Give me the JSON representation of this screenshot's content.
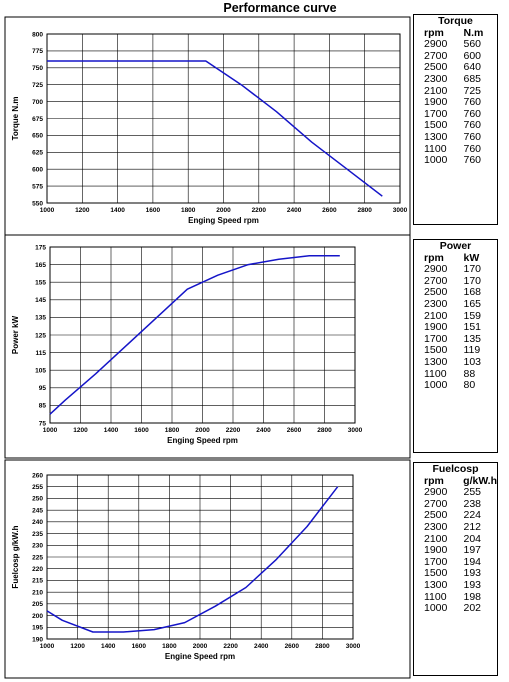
{
  "page": {
    "title": "Performance curve"
  },
  "chart_data": [
    {
      "type": "line",
      "xlabel": "Enging Speed rpm",
      "ylabel": "Torque N.m",
      "xlim": [
        1000,
        3000
      ],
      "ylim": [
        550,
        800
      ],
      "xticks": [
        1000,
        1200,
        1400,
        1600,
        1800,
        2000,
        2200,
        2400,
        2600,
        2800,
        3000
      ],
      "yticks": [
        550,
        575,
        600,
        625,
        650,
        675,
        700,
        725,
        750,
        775,
        800
      ],
      "grid": true,
      "x": [
        1000,
        1100,
        1300,
        1500,
        1700,
        1900,
        2100,
        2300,
        2500,
        2700,
        2900
      ],
      "y": [
        760,
        760,
        760,
        760,
        760,
        760,
        725,
        685,
        640,
        600,
        560
      ],
      "color": "#1515c8",
      "table": {
        "title": "Torque",
        "col1": "rpm",
        "col2": "N.m",
        "rows": [
          [
            "2900",
            "560"
          ],
          [
            "2700",
            "600"
          ],
          [
            "2500",
            "640"
          ],
          [
            "2300",
            "685"
          ],
          [
            "2100",
            "725"
          ],
          [
            "1900",
            "760"
          ],
          [
            "1700",
            "760"
          ],
          [
            "1500",
            "760"
          ],
          [
            "1300",
            "760"
          ],
          [
            "1100",
            "760"
          ],
          [
            "1000",
            "760"
          ]
        ]
      }
    },
    {
      "type": "line",
      "xlabel": "Enging Speed rpm",
      "ylabel": "Power kW",
      "xlim": [
        1000,
        3000
      ],
      "ylim": [
        75,
        175
      ],
      "xticks": [
        1000,
        1200,
        1400,
        1600,
        1800,
        2000,
        2200,
        2400,
        2600,
        2800,
        3000
      ],
      "yticks": [
        75,
        85,
        95,
        105,
        115,
        125,
        135,
        145,
        155,
        165,
        175
      ],
      "grid": true,
      "x": [
        1000,
        1100,
        1300,
        1500,
        1700,
        1900,
        2100,
        2300,
        2500,
        2700,
        2900
      ],
      "y": [
        80,
        88,
        103,
        119,
        135,
        151,
        159,
        165,
        168,
        170,
        170
      ],
      "color": "#1515c8",
      "table": {
        "title": "Power",
        "col1": "rpm",
        "col2": "kW",
        "rows": [
          [
            "2900",
            "170"
          ],
          [
            "2700",
            "170"
          ],
          [
            "2500",
            "168"
          ],
          [
            "2300",
            "165"
          ],
          [
            "2100",
            "159"
          ],
          [
            "1900",
            "151"
          ],
          [
            "1700",
            "135"
          ],
          [
            "1500",
            "119"
          ],
          [
            "1300",
            "103"
          ],
          [
            "1100",
            "88"
          ],
          [
            "1000",
            "80"
          ]
        ]
      }
    },
    {
      "type": "line",
      "xlabel": "Engine Speed rpm",
      "ylabel": "Fuelcosp g/kW.h",
      "xlim": [
        1000,
        3000
      ],
      "ylim": [
        190,
        260
      ],
      "xticks": [
        1000,
        1200,
        1400,
        1600,
        1800,
        2000,
        2200,
        2400,
        2600,
        2800,
        3000
      ],
      "yticks": [
        190,
        195,
        200,
        205,
        210,
        215,
        220,
        225,
        230,
        235,
        240,
        245,
        250,
        255,
        260
      ],
      "grid": true,
      "x": [
        1000,
        1100,
        1300,
        1500,
        1700,
        1900,
        2100,
        2300,
        2500,
        2700,
        2900
      ],
      "y": [
        202,
        198,
        193,
        193,
        194,
        197,
        204,
        212,
        224,
        238,
        255
      ],
      "color": "#1515c8",
      "table": {
        "title": "Fuelcosp",
        "col1": "rpm",
        "col2": "g/kW.h",
        "rows": [
          [
            "2900",
            "255"
          ],
          [
            "2700",
            "238"
          ],
          [
            "2500",
            "224"
          ],
          [
            "2300",
            "212"
          ],
          [
            "2100",
            "204"
          ],
          [
            "1900",
            "197"
          ],
          [
            "1700",
            "194"
          ],
          [
            "1500",
            "193"
          ],
          [
            "1300",
            "193"
          ],
          [
            "1100",
            "198"
          ],
          [
            "1000",
            "202"
          ]
        ]
      }
    }
  ]
}
